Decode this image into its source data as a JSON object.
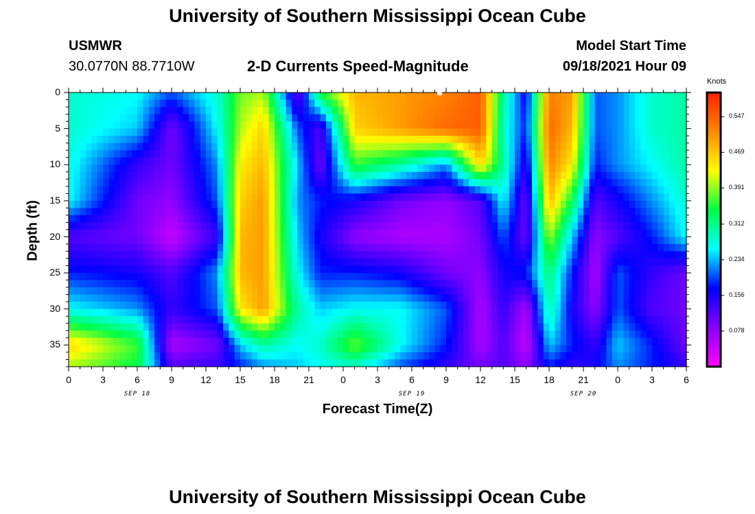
{
  "page": {
    "title_top": "University of Southern Mississippi Ocean Cube",
    "title_bottom": "University of Southern Mississippi Ocean Cube",
    "station_id": "USMWR",
    "station_coords": "30.0770N  88.7710W",
    "plot_title": "2-D Currents Speed-Magnitude",
    "model_start_label": "Model Start Time",
    "model_start_value": "09/18/2021 Hour 09"
  },
  "chart_data": {
    "type": "heatmap",
    "title": "2-D Currents Speed-Magnitude",
    "xlabel": "Forecast Time(Z)",
    "ylabel": "Depth (ft)",
    "x_range_hours_from_start": [
      0,
      54
    ],
    "x_tick_labels": [
      "0",
      "3",
      "6",
      "9",
      "12",
      "15",
      "18",
      "21",
      "0",
      "3",
      "6",
      "9",
      "12",
      "15",
      "18",
      "21",
      "0",
      "3",
      "6"
    ],
    "date_labels": [
      "SEP 18",
      "SEP 19",
      "SEP 20"
    ],
    "y_ticks": [
      0,
      5,
      10,
      15,
      20,
      25,
      30,
      35
    ],
    "ylim": [
      0,
      38
    ],
    "y_inverted": true,
    "colorbar": {
      "unit": "Knots",
      "tick_labels": [
        "0.547",
        "0.469",
        "0.391",
        "0.312",
        "0.234",
        "0.156",
        "0.078"
      ],
      "range": [
        0.0,
        0.6
      ],
      "colors": [
        "#ff00ff",
        "#8800ff",
        "#0000ff",
        "#00ffff",
        "#00ff44",
        "#ffff00",
        "#ff8800",
        "#ff2200"
      ]
    },
    "time_hours": [
      0,
      6,
      9,
      13,
      15,
      17,
      20,
      22,
      25,
      29,
      33,
      36,
      38,
      40,
      42,
      44,
      46,
      48,
      51,
      54
    ],
    "depths_ft": [
      0,
      5,
      10,
      15,
      20,
      25,
      30,
      35,
      38
    ],
    "speed_knots": [
      [
        0.28,
        0.26,
        0.2,
        0.28,
        0.38,
        0.4,
        0.1,
        0.35,
        0.48,
        0.5,
        0.52,
        0.55,
        0.3,
        0.16,
        0.52,
        0.5,
        0.2,
        0.22,
        0.28,
        0.3
      ],
      [
        0.28,
        0.24,
        0.1,
        0.26,
        0.4,
        0.46,
        0.2,
        0.12,
        0.46,
        0.5,
        0.54,
        0.55,
        0.28,
        0.18,
        0.54,
        0.48,
        0.2,
        0.22,
        0.28,
        0.3
      ],
      [
        0.27,
        0.14,
        0.1,
        0.22,
        0.44,
        0.48,
        0.24,
        0.1,
        0.36,
        0.3,
        0.22,
        0.46,
        0.3,
        0.14,
        0.52,
        0.44,
        0.18,
        0.22,
        0.26,
        0.3
      ],
      [
        0.26,
        0.1,
        0.08,
        0.2,
        0.46,
        0.5,
        0.22,
        0.18,
        0.16,
        0.1,
        0.08,
        0.12,
        0.26,
        0.1,
        0.48,
        0.34,
        0.12,
        0.16,
        0.22,
        0.28
      ],
      [
        0.12,
        0.1,
        0.04,
        0.14,
        0.48,
        0.5,
        0.24,
        0.16,
        0.08,
        0.06,
        0.06,
        0.1,
        0.2,
        0.1,
        0.4,
        0.24,
        0.08,
        0.12,
        0.18,
        0.26
      ],
      [
        0.18,
        0.16,
        0.12,
        0.22,
        0.48,
        0.5,
        0.26,
        0.18,
        0.18,
        0.16,
        0.1,
        0.08,
        0.16,
        0.18,
        0.32,
        0.18,
        0.06,
        0.2,
        0.14,
        0.1
      ],
      [
        0.26,
        0.22,
        0.14,
        0.2,
        0.44,
        0.5,
        0.3,
        0.24,
        0.26,
        0.26,
        0.2,
        0.06,
        0.14,
        0.06,
        0.3,
        0.16,
        0.08,
        0.2,
        0.12,
        0.1
      ],
      [
        0.46,
        0.36,
        0.06,
        0.1,
        0.24,
        0.3,
        0.26,
        0.28,
        0.38,
        0.26,
        0.18,
        0.06,
        0.12,
        0.04,
        0.24,
        0.18,
        0.14,
        0.24,
        0.18,
        0.1
      ],
      [
        0.4,
        0.34,
        0.12,
        0.14,
        0.18,
        0.22,
        0.24,
        0.26,
        0.28,
        0.2,
        0.14,
        0.1,
        0.12,
        0.08,
        0.18,
        0.14,
        0.16,
        0.22,
        0.18,
        0.14
      ]
    ]
  }
}
